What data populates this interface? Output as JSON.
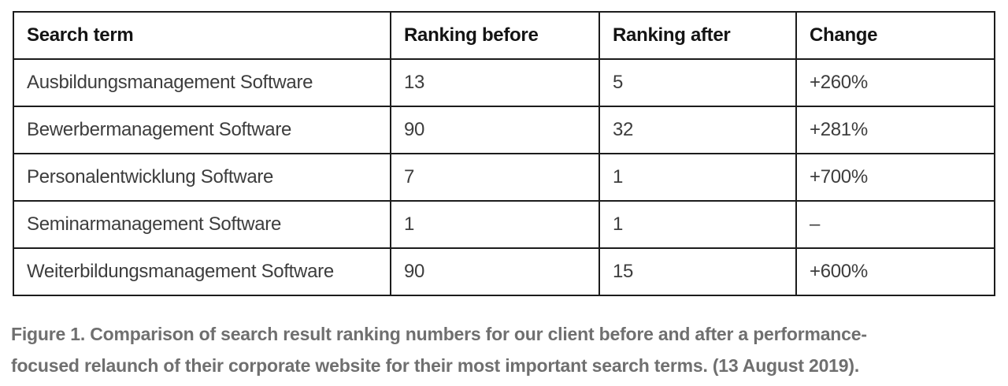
{
  "chart_data": {
    "type": "table",
    "columns": [
      "Search term",
      "Ranking before",
      "Ranking after",
      "Change"
    ],
    "rows": [
      [
        "Ausbildungsmanagement Software",
        "13",
        "5",
        "+260%"
      ],
      [
        "Bewerbermanagement Software",
        "90",
        "32",
        "+281%"
      ],
      [
        "Personalentwicklung Software",
        "7",
        "1",
        "+700%"
      ],
      [
        "Seminarmanagement Software",
        "1",
        "1",
        "–"
      ],
      [
        "Weiterbildungsmanagement Software",
        "90",
        "15",
        "+600%"
      ]
    ],
    "caption": "Figure 1. Comparison of search result ranking numbers for our client before and after a performance-focused relaunch of their corporate website for their most important search terms. (13 August 2019)."
  },
  "caption": {
    "line1": "Figure 1. Comparison of search result ranking numbers for our client before and after a performance-",
    "line2": "focused relaunch of their corporate website for their most important search terms. (13 August 2019)."
  },
  "colors": {
    "border": "#1c1c1c",
    "header_text": "#141414",
    "body_text": "#3d3d3d",
    "caption_text": "#6f6f6f",
    "background": "#ffffff"
  }
}
